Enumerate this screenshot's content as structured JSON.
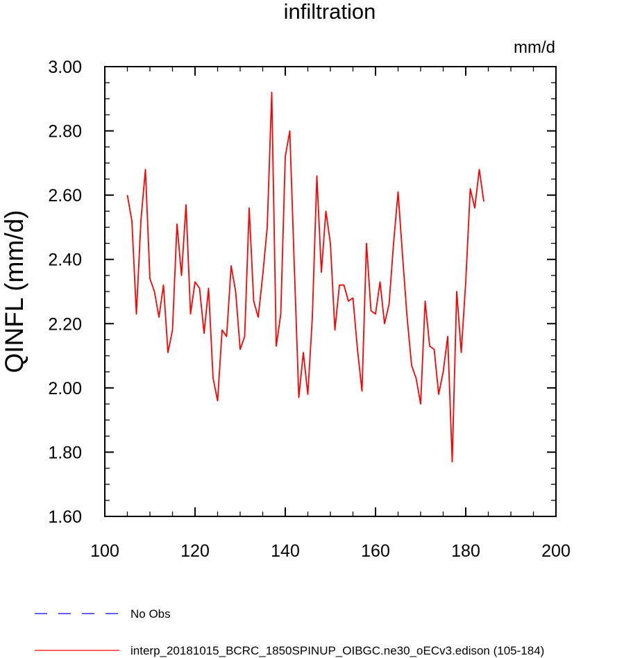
{
  "chart_data": {
    "type": "line",
    "title": "infiltration",
    "units": "mm/d",
    "ylabel": "QINFL  (mm/d)",
    "xlim": [
      100,
      200
    ],
    "ylim": [
      1.6,
      3.0
    ],
    "xticks": [
      "100",
      "120",
      "140",
      "160",
      "180",
      "200"
    ],
    "xtick_values": [
      100,
      120,
      140,
      160,
      180,
      200
    ],
    "yticks": [
      "1.60",
      "1.80",
      "2.00",
      "2.20",
      "2.40",
      "2.60",
      "2.80",
      "3.00"
    ],
    "ytick_values": [
      1.6,
      1.8,
      2.0,
      2.2,
      2.4,
      2.6,
      2.8,
      3.0
    ],
    "grid": false,
    "legend_position": "bottom",
    "series": [
      {
        "name": "No Obs",
        "color": "#0000ff",
        "style": "dashed",
        "x": [],
        "y": []
      },
      {
        "name": "interp_20181015_BCRC_1850SPINUP_OIBGC.ne30_oECv3.edison (105-184)",
        "color": "#ff0000",
        "style": "solid",
        "x": [
          105,
          106,
          107,
          108,
          109,
          110,
          111,
          112,
          113,
          114,
          115,
          116,
          117,
          118,
          119,
          120,
          121,
          122,
          123,
          124,
          125,
          126,
          127,
          128,
          129,
          130,
          131,
          132,
          133,
          134,
          135,
          136,
          137,
          138,
          139,
          140,
          141,
          142,
          143,
          144,
          145,
          146,
          147,
          148,
          149,
          150,
          151,
          152,
          153,
          154,
          155,
          156,
          157,
          158,
          159,
          160,
          161,
          162,
          163,
          164,
          165,
          166,
          167,
          168,
          169,
          170,
          171,
          172,
          173,
          174,
          175,
          176,
          177,
          178,
          179,
          180,
          181,
          182,
          183,
          184
        ],
        "y": [
          2.6,
          2.52,
          2.23,
          2.52,
          2.68,
          2.34,
          2.3,
          2.22,
          2.32,
          2.11,
          2.18,
          2.51,
          2.35,
          2.57,
          2.23,
          2.33,
          2.31,
          2.17,
          2.31,
          2.03,
          1.96,
          2.18,
          2.16,
          2.38,
          2.3,
          2.12,
          2.16,
          2.56,
          2.27,
          2.22,
          2.35,
          2.5,
          2.92,
          2.13,
          2.23,
          2.72,
          2.8,
          2.38,
          1.97,
          2.11,
          1.98,
          2.22,
          2.66,
          2.36,
          2.55,
          2.45,
          2.18,
          2.32,
          2.32,
          2.27,
          2.28,
          2.12,
          1.99,
          2.45,
          2.24,
          2.23,
          2.33,
          2.2,
          2.26,
          2.45,
          2.61,
          2.41,
          2.22,
          2.07,
          2.03,
          1.95,
          2.27,
          2.13,
          2.12,
          1.98,
          2.05,
          2.16,
          1.77,
          2.3,
          2.11,
          2.33,
          2.62,
          2.56,
          2.68,
          2.58
        ]
      }
    ]
  }
}
